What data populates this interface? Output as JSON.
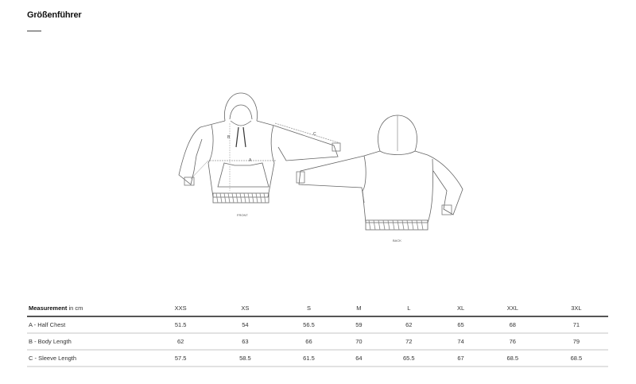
{
  "header": {
    "title": "Größenführer"
  },
  "diagram": {
    "front_label": "FRONT",
    "back_label": "BACK",
    "measure_a": "A",
    "measure_b": "B",
    "measure_c": "C"
  },
  "table": {
    "header_bold": "Measurement",
    "header_unit": "in cm",
    "sizes": [
      "XXS",
      "XS",
      "S",
      "M",
      "L",
      "XL",
      "XXL",
      "3XL"
    ],
    "rows": [
      {
        "label": "A - Half Chest",
        "values": [
          "51.5",
          "54",
          "56.5",
          "59",
          "62",
          "65",
          "68",
          "71"
        ]
      },
      {
        "label": "B - Body Length",
        "values": [
          "62",
          "63",
          "66",
          "70",
          "72",
          "74",
          "76",
          "79"
        ]
      },
      {
        "label": "C - Sleeve Length",
        "values": [
          "57.5",
          "58.5",
          "61.5",
          "64",
          "65.5",
          "67",
          "68.5",
          "68.5"
        ]
      }
    ]
  }
}
